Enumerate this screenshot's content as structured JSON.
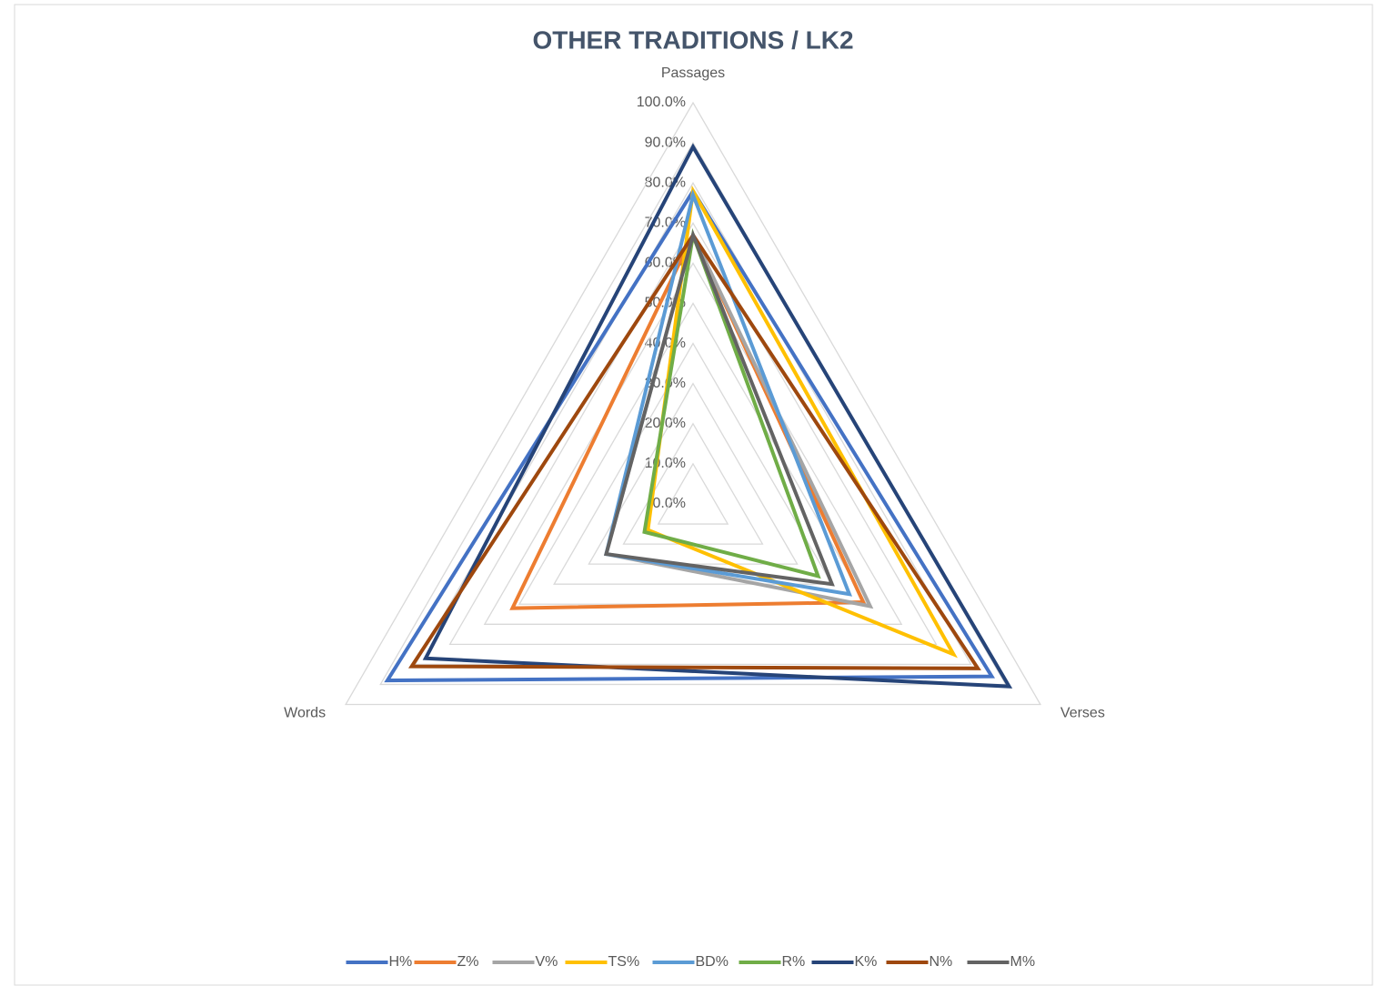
{
  "chart_data": {
    "type": "radar",
    "title": "OTHER TRADITIONS / LK2",
    "categories": [
      "Passages",
      "Verses",
      "Words"
    ],
    "ylim": [
      0,
      100
    ],
    "yticks": [
      {
        "value": 0,
        "label": "0.0%"
      },
      {
        "value": 10,
        "label": "10.0%"
      },
      {
        "value": 20,
        "label": "20.0%"
      },
      {
        "value": 30,
        "label": "30.0%"
      },
      {
        "value": 40,
        "label": "40.0%"
      },
      {
        "value": 50,
        "label": "50.0%"
      },
      {
        "value": 60,
        "label": "60.0%"
      },
      {
        "value": 70,
        "label": "70.0%"
      },
      {
        "value": 80,
        "label": "80.0%"
      },
      {
        "value": 90,
        "label": "90.0%"
      },
      {
        "value": 100,
        "label": "100.0%"
      }
    ],
    "grid": true,
    "legend": "bottom",
    "series": [
      {
        "name": "H%",
        "color": "#4472c4",
        "values": [
          78,
          86,
          88
        ]
      },
      {
        "name": "Z%",
        "color": "#ed7d31",
        "values": [
          67,
          49,
          52
        ]
      },
      {
        "name": "V%",
        "color": "#a5a5a5",
        "values": [
          67,
          51,
          25
        ]
      },
      {
        "name": "TS%",
        "color": "#ffc000",
        "values": [
          78,
          75,
          13
        ]
      },
      {
        "name": "BD%",
        "color": "#5b9bd5",
        "values": [
          77,
          45,
          25
        ]
      },
      {
        "name": "R%",
        "color": "#70ad47",
        "values": [
          67,
          36,
          14
        ]
      },
      {
        "name": "K%",
        "color": "#264478",
        "values": [
          89,
          91,
          77
        ]
      },
      {
        "name": "N%",
        "color": "#9e480e",
        "values": [
          67,
          82,
          81
        ]
      },
      {
        "name": "M%",
        "color": "#636363",
        "values": [
          67,
          40,
          25
        ]
      }
    ]
  }
}
